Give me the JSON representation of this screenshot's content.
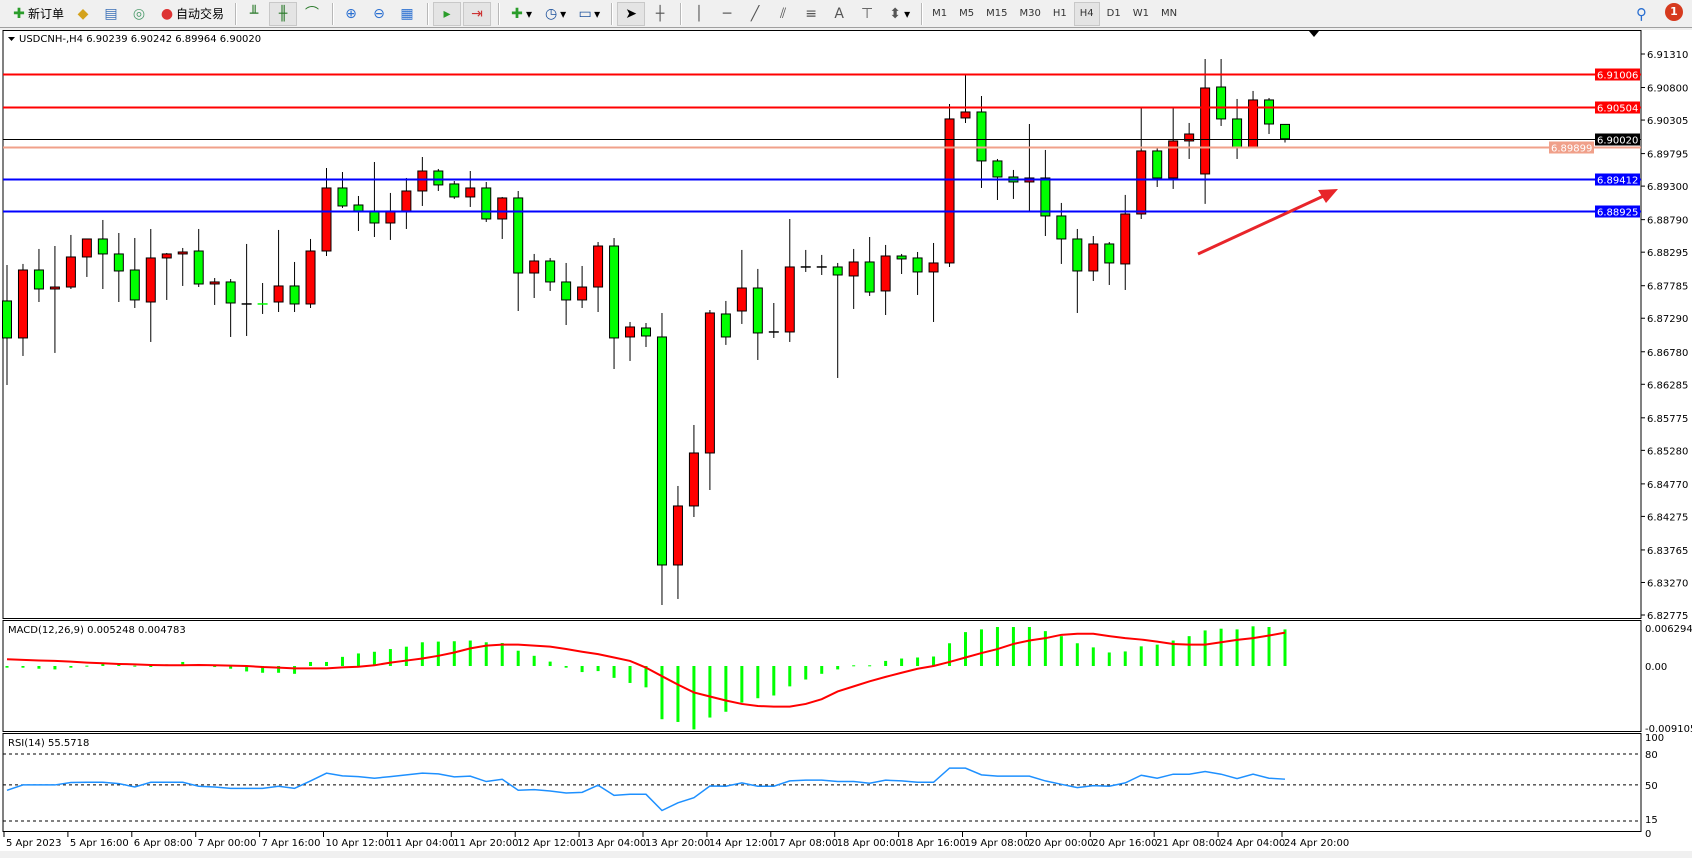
{
  "toolbar": {
    "new_order": "新订单",
    "auto_trading": "自动交易",
    "icons": [
      "new-order-icon",
      "history-icon",
      "market-watch-icon",
      "signals-icon",
      "auto-trading-icon",
      "bar-chart-icon",
      "candlestick-icon",
      "line-chart-icon",
      "zoom-in-icon",
      "zoom-out-icon",
      "tile-windows-icon",
      "autoscroll-icon",
      "chart-shift-icon",
      "indicators-icon",
      "periods-icon",
      "templates-icon",
      "cursor-icon",
      "crosshair-icon",
      "vertical-line-icon",
      "horizontal-line-icon",
      "trendline-icon",
      "equidistant-channel-icon",
      "fibonacci-icon",
      "text-icon",
      "text-label-icon",
      "arrows-icon"
    ],
    "text_tool": "A",
    "timeframes": [
      "M1",
      "M5",
      "M15",
      "M30",
      "H1",
      "H4",
      "D1",
      "W1",
      "MN"
    ],
    "active_timeframe": "H4",
    "notifications": "1"
  },
  "chart": {
    "header": "USDCNH-,H4  6.90239 6.90242 6.89964 6.90020",
    "bull_color": "#ff0000",
    "bear_color": "#00ff00",
    "price_ticks": [
      "6.91310",
      "6.90800",
      "6.90305",
      "6.89795",
      "6.89300",
      "6.88790",
      "6.88295",
      "6.87785",
      "6.87290",
      "6.86780",
      "6.86285",
      "6.85775",
      "6.85280",
      "6.84770",
      "6.84275",
      "6.83765",
      "6.83270",
      "6.82775"
    ],
    "levels": [
      {
        "price": "6.91006",
        "color": "#ff0000"
      },
      {
        "price": "6.90504",
        "color": "#ff0000"
      },
      {
        "price": "6.90020",
        "color": "#000000"
      },
      {
        "price": "6.89899",
        "color": "#f0a08a"
      },
      {
        "price": "6.89412",
        "color": "#0000ff"
      },
      {
        "price": "6.88925",
        "color": "#0000ff"
      }
    ],
    "time_labels": [
      "5 Apr 2023",
      "5 Apr 16:00",
      "6 Apr 08:00",
      "7 Apr 00:00",
      "7 Apr 16:00",
      "10 Apr 12:00",
      "11 Apr 04:00",
      "11 Apr 20:00",
      "12 Apr 12:00",
      "13 Apr 04:00",
      "13 Apr 20:00",
      "14 Apr 12:00",
      "17 Apr 08:00",
      "18 Apr 00:00",
      "18 Apr 16:00",
      "19 Apr 08:00",
      "20 Apr 00:00",
      "20 Apr 16:00",
      "21 Apr 08:00",
      "24 Apr 04:00",
      "24 Apr 20:00"
    ]
  },
  "macd": {
    "label": "MACD(12,26,9) 0.005248 0.004783",
    "ticks": [
      "0.006294",
      "0.00",
      "-0.009105"
    ]
  },
  "rsi": {
    "label": "RSI(14) 55.5718",
    "ticks": [
      "100",
      "80",
      "50",
      "15",
      "0"
    ]
  },
  "chart_data": {
    "type": "candlestick",
    "ohlc": [
      [
        6.87553,
        6.881,
        6.86275,
        6.8699
      ],
      [
        6.8699,
        6.88116,
        6.86716,
        6.88024
      ],
      [
        6.88024,
        6.88344,
        6.87537,
        6.87735
      ],
      [
        6.87735,
        6.88389,
        6.86762,
        6.87765
      ],
      [
        6.87765,
        6.88557,
        6.87735,
        6.88222
      ],
      [
        6.88222,
        6.88496,
        6.87918,
        6.88496
      ],
      [
        6.88496,
        6.88785,
        6.87735,
        6.88268
      ],
      [
        6.88268,
        6.88587,
        6.87537,
        6.88009
      ],
      [
        6.88024,
        6.88511,
        6.87446,
        6.87568
      ],
      [
        6.87537,
        6.88648,
        6.86929,
        6.88207
      ],
      [
        6.88207,
        6.88283,
        6.87568,
        6.88268
      ],
      [
        6.88268,
        6.88359,
        6.87781,
        6.88298
      ],
      [
        6.88313,
        6.88648,
        6.87765,
        6.87811
      ],
      [
        6.87811,
        6.87902,
        6.87492,
        6.87842
      ],
      [
        6.87842,
        6.87887,
        6.87005,
        6.87522
      ],
      [
        6.87507,
        6.8842,
        6.8702,
        6.87507
      ],
      [
        6.87507,
        6.87826,
        6.87355,
        6.875
      ],
      [
        6.87537,
        6.88633,
        6.87385,
        6.87781
      ],
      [
        6.87781,
        6.88146,
        6.87385,
        6.87507
      ],
      [
        6.87507,
        6.88496,
        6.87446,
        6.88313
      ],
      [
        6.88313,
        6.89576,
        6.88237,
        6.89272
      ],
      [
        6.89272,
        6.89515,
        6.88968,
        6.88998
      ],
      [
        6.89013,
        6.8915,
        6.88617,
        6.88922
      ],
      [
        6.88922,
        6.89667,
        6.88526,
        6.88739
      ],
      [
        6.88739,
        6.89196,
        6.88481,
        6.88922
      ],
      [
        6.88922,
        6.89424,
        6.88648,
        6.89226
      ],
      [
        6.89226,
        6.89743,
        6.88998,
        6.8953
      ],
      [
        6.8953,
        6.89561,
        6.89226,
        6.89318
      ],
      [
        6.89333,
        6.89378,
        6.89105,
        6.89135
      ],
      [
        6.89135,
        6.8953,
        6.88983,
        6.89272
      ],
      [
        6.89272,
        6.89363,
        6.88754,
        6.888
      ],
      [
        6.888,
        6.89135,
        6.88496,
        6.8912
      ],
      [
        6.8912,
        6.89226,
        6.874,
        6.87978
      ],
      [
        6.87978,
        6.88268,
        6.87598,
        6.88161
      ],
      [
        6.88161,
        6.88207,
        6.87705,
        6.87842
      ],
      [
        6.87842,
        6.88131,
        6.87187,
        6.87568
      ],
      [
        6.87568,
        6.88085,
        6.87446,
        6.87765
      ],
      [
        6.87765,
        6.8845,
        6.87385,
        6.88389
      ],
      [
        6.88389,
        6.88511,
        6.86518,
        6.8699
      ],
      [
        6.87005,
        6.87233,
        6.8664,
        6.87157
      ],
      [
        6.87142,
        6.87218,
        6.86853,
        6.8702
      ],
      [
        6.87005,
        6.8737,
        6.82928,
        6.83536
      ],
      [
        6.83536,
        6.84738,
        6.83019,
        6.84434
      ],
      [
        6.84434,
        6.85666,
        6.84266,
        6.8524
      ],
      [
        6.8524,
        6.87416,
        6.84677,
        6.8737
      ],
      [
        6.87355,
        6.87553,
        6.86884,
        6.87005
      ],
      [
        6.874,
        6.88329,
        6.87203,
        6.8775
      ],
      [
        6.8775,
        6.8804,
        6.86655,
        6.87066
      ],
      [
        6.87081,
        6.87522,
        6.8699,
        6.87081
      ],
      [
        6.87081,
        6.888,
        6.86929,
        6.8807
      ],
      [
        6.8807,
        6.88329,
        6.87994,
        6.8807
      ],
      [
        6.8807,
        6.88253,
        6.87948,
        6.8807
      ],
      [
        6.8807,
        6.88131,
        6.86381,
        6.87948
      ],
      [
        6.87933,
        6.88344,
        6.87431,
        6.88146
      ],
      [
        6.88146,
        6.88526,
        6.87629,
        6.87689
      ],
      [
        6.87705,
        6.88405,
        6.87339,
        6.88237
      ],
      [
        6.88237,
        6.88268,
        6.87963,
        6.88192
      ],
      [
        6.88207,
        6.88298,
        6.87644,
        6.87994
      ],
      [
        6.87994,
        6.88435,
        6.87233,
        6.88131
      ],
      [
        6.88131,
        6.9055,
        6.8807,
        6.90322
      ],
      [
        6.90337,
        6.90991,
        6.90261,
        6.90428
      ],
      [
        6.90428,
        6.90671,
        6.89272,
        6.89683
      ],
      [
        6.89683,
        6.89713,
        6.89089,
        6.89439
      ],
      [
        6.89439,
        6.89546,
        6.89105,
        6.89363
      ],
      [
        6.89363,
        6.90245,
        6.88907,
        6.89424
      ],
      [
        6.89424,
        6.8985,
        6.88541,
        6.88846
      ],
      [
        6.88846,
        6.89044,
        6.88116,
        6.88496
      ],
      [
        6.88496,
        6.88648,
        6.8737,
        6.88009
      ],
      [
        6.88009,
        6.88541,
        6.87857,
        6.8842
      ],
      [
        6.8842,
        6.8845,
        6.87796,
        6.88131
      ],
      [
        6.88116,
        6.89166,
        6.8772,
        6.88876
      ],
      [
        6.88876,
        6.90489,
        6.888,
        6.89835
      ],
      [
        6.89835,
        6.89896,
        6.89287,
        6.89424
      ],
      [
        6.89424,
        6.90504,
        6.89257,
        6.89987
      ],
      [
        6.89987,
        6.90261,
        6.89713,
        6.90093
      ],
      [
        6.89485,
        6.91234,
        6.89029,
        6.90793
      ],
      [
        6.90808,
        6.91234,
        6.90215,
        6.90322
      ],
      [
        6.90322,
        6.90626,
        6.89713,
        6.8988
      ],
      [
        6.8988,
        6.90748,
        6.8988,
        6.90611
      ],
      [
        6.90611,
        6.90641,
        6.90093,
        6.90245
      ],
      [
        6.90239,
        6.90242,
        6.89964,
        6.9002
      ]
    ],
    "ylim": [
      6.82775,
      6.9131
    ],
    "macd_histogram": [
      -0.00024,
      -0.00024,
      -0.00039,
      -0.00049,
      -0.00024,
      5e-05,
      0.00039,
      0.00039,
      5e-05,
      -5e-05,
      0.00024,
      0.00058,
      0.00029,
      -0.00015,
      -0.00039,
      -0.00078,
      -0.00097,
      -0.00097,
      -0.00112,
      0.00058,
      0.00058,
      0.00131,
      0.0018,
      0.00204,
      0.00243,
      0.00277,
      0.0034,
      0.0035,
      0.00355,
      0.00365,
      0.0034,
      0.0033,
      0.00219,
      0.00146,
      0.00063,
      -0.00024,
      -0.00087,
      -0.00073,
      -0.0017,
      -0.00243,
      -0.00306,
      -0.00763,
      -0.00802,
      -0.00909,
      -0.00739,
      -0.00656,
      -0.00525,
      -0.00462,
      -0.00423,
      -0.00292,
      -0.00194,
      -0.00112,
      -0.00049,
      0.0001,
      0.0001,
      0.00073,
      0.00107,
      0.00122,
      0.00136,
      0.00326,
      0.00486,
      0.00525,
      0.00559,
      0.00559,
      0.00559,
      0.005,
      0.00428,
      0.00326,
      0.00267,
      0.00194,
      0.00209,
      0.00282,
      0.00306,
      0.00365,
      0.00428,
      0.0051,
      0.00535,
      0.00525,
      0.00569,
      0.00559,
      0.005248
    ],
    "macd_signal": [
      0.00097,
      0.00087,
      0.00078,
      0.00073,
      0.00063,
      0.00049,
      0.00039,
      0.00029,
      0.00024,
      0.00015,
      0.0001,
      0.0001,
      0.00015,
      0.0001,
      5e-05,
      0.0,
      -0.00015,
      -0.00024,
      -0.00034,
      -0.00034,
      -0.00034,
      -0.0002,
      -0.0001,
      0.0001,
      0.00049,
      0.00078,
      0.00107,
      0.00146,
      0.00194,
      0.00253,
      0.00292,
      0.00306,
      0.00306,
      0.00292,
      0.00277,
      0.00243,
      0.00204,
      0.0017,
      0.00122,
      0.00073,
      -0.00024,
      -0.00146,
      -0.00267,
      -0.00379,
      -0.00437,
      -0.00495,
      -0.00544,
      -0.00573,
      -0.00583,
      -0.00583,
      -0.00544,
      -0.00476,
      -0.00365,
      -0.00292,
      -0.00219,
      -0.00156,
      -0.00097,
      -0.00039,
      0.0,
      0.00058,
      0.00122,
      0.00185,
      0.00243,
      0.00316,
      0.00365,
      0.00399,
      0.00447,
      0.00462,
      0.00462,
      0.00428,
      0.00399,
      0.00379,
      0.0035,
      0.00316,
      0.00306,
      0.00306,
      0.0034,
      0.00374,
      0.00399,
      0.00437,
      0.004783
    ],
    "macd_range": [
      -0.009105,
      0.006294
    ],
    "rsi": [
      44.8,
      50,
      50,
      50,
      52.3,
      52.6,
      52.6,
      51.3,
      48,
      52.6,
      52.6,
      52.6,
      48.7,
      48,
      46.7,
      46.7,
      46.7,
      48.7,
      46.7,
      53.9,
      61.4,
      58.8,
      58.1,
      56.5,
      58.1,
      59.8,
      61.4,
      60.7,
      57.8,
      58.5,
      53.3,
      55.5,
      44.8,
      45.4,
      44.1,
      42.2,
      42.8,
      49.7,
      39.9,
      40.9,
      40.9,
      25.2,
      32.7,
      37.6,
      49,
      48.7,
      52,
      48.7,
      48.7,
      53.9,
      54.6,
      54.6,
      53.3,
      53.3,
      51.6,
      54.6,
      53.9,
      52.6,
      52.6,
      66.3,
      66.3,
      59.8,
      58.5,
      58.5,
      58.5,
      53.9,
      50.6,
      47.4,
      49.3,
      48.7,
      52,
      59.4,
      56.5,
      60.4,
      60.4,
      63,
      60.4,
      56.2,
      60.4,
      56.5,
      55.57
    ],
    "rsi_levels": [
      80,
      50,
      15
    ]
  }
}
